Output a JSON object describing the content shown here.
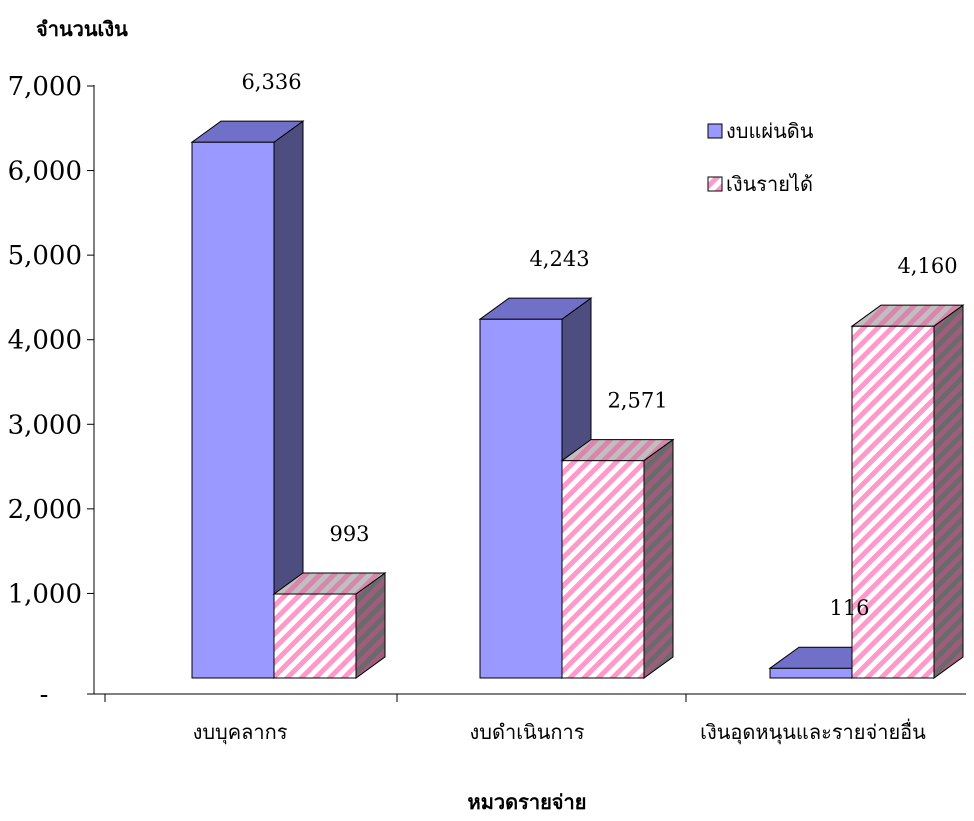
{
  "chart_data": {
    "type": "bar",
    "ylabel": "จำนวนเงิน",
    "xlabel": "หมวดรายจ่าย",
    "categories": [
      "งบบุคลากร",
      "งบดำเนินการ",
      "เงินอุดหนุนและรายจ่ายอื่น"
    ],
    "series": [
      {
        "name": "งบแผ่นดิน",
        "values": [
          6336,
          4243,
          116
        ],
        "labels": [
          "6,336",
          "4,243",
          "116"
        ],
        "color": "#9999ff",
        "side_color": "#4d4d80",
        "top_color": "#7070c8"
      },
      {
        "name": "เงินรายได้",
        "values": [
          993,
          2571,
          4160
        ],
        "labels": [
          "993",
          "2,571",
          "4,160"
        ],
        "color": "#ff99cc",
        "pattern": "diagonal-stripes"
      }
    ],
    "ylim": [
      0,
      7000
    ],
    "yticks": [
      0,
      1000,
      2000,
      3000,
      4000,
      5000,
      6000,
      7000
    ],
    "ytick_labels": [
      "-",
      "1,000",
      "2,000",
      "3,000",
      "4,000",
      "5,000",
      "6,000",
      "7,000"
    ],
    "legend_position": "top-right",
    "grid": false,
    "style": "3d-column"
  }
}
